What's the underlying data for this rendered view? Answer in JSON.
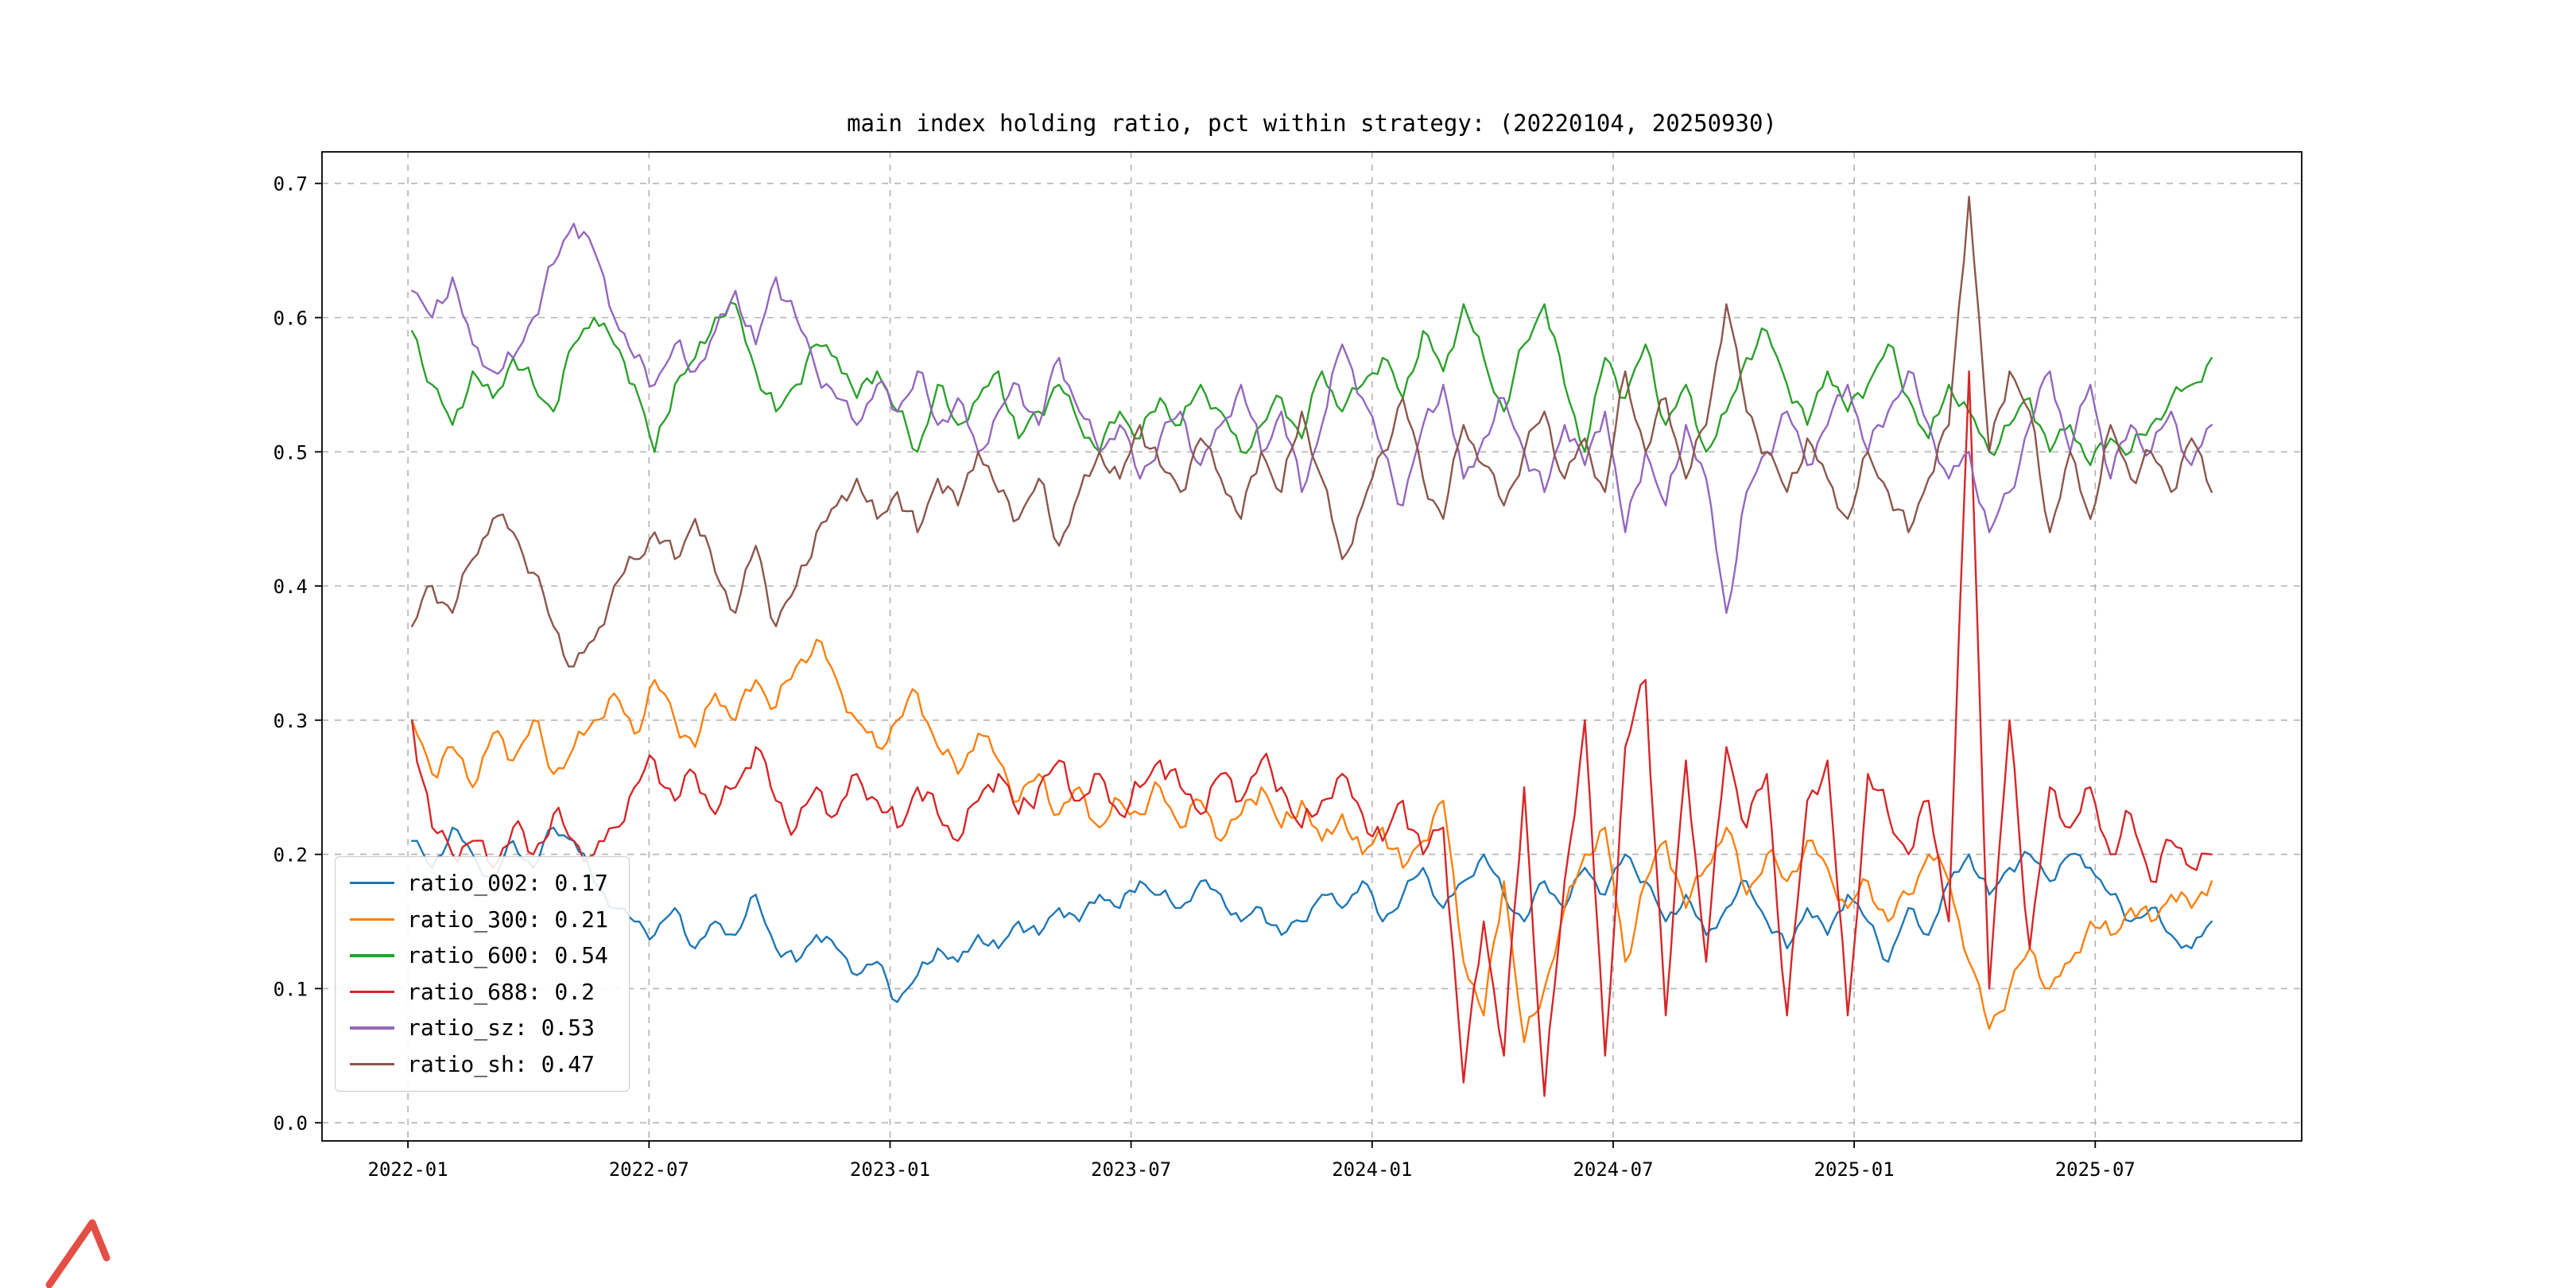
{
  "figure": {
    "title": "main index holding ratio, pct within strategy: (20220104, 20250930)"
  },
  "chart_data": {
    "type": "line",
    "title": "main index holding ratio, pct within strategy: (20220104, 20250930)",
    "xlabel": "",
    "ylabel": "",
    "grid": true,
    "legend_position": "lower-left",
    "x_tick_labels": [
      "2022-01",
      "2022-07",
      "2023-01",
      "2023-07",
      "2024-01",
      "2024-07",
      "2025-01",
      "2025-07"
    ],
    "x_tick_months": [
      0,
      6,
      12,
      18,
      24,
      30,
      36,
      42
    ],
    "x_axis_months_range": [
      -2.14,
      47.14
    ],
    "data_month_range": [
      0.1,
      44.9
    ],
    "y_ticks": [
      0.0,
      0.1,
      0.2,
      0.3,
      0.4,
      0.5,
      0.6,
      0.7
    ],
    "y_tick_labels": [
      "0.0",
      "0.1",
      "0.2",
      "0.3",
      "0.4",
      "0.5",
      "0.6",
      "0.7"
    ],
    "ylim": [
      -0.0135,
      0.7235
    ],
    "grid_color": "#b3b3b3",
    "series": [
      {
        "name": "ratio_002",
        "legend_label": "ratio_002: 0.17",
        "color": "#1f77b4",
        "values": [
          0.21,
          0.19,
          0.22,
          0.2,
          0.18,
          0.21,
          0.19,
          0.22,
          0.21,
          0.18,
          0.16,
          0.15,
          0.14,
          0.16,
          0.13,
          0.15,
          0.14,
          0.17,
          0.13,
          0.12,
          0.14,
          0.13,
          0.11,
          0.12,
          0.09,
          0.11,
          0.13,
          0.12,
          0.14,
          0.13,
          0.15,
          0.14,
          0.16,
          0.15,
          0.17,
          0.16,
          0.18,
          0.17,
          0.16,
          0.18,
          0.17,
          0.15,
          0.16,
          0.14,
          0.15,
          0.17,
          0.16,
          0.18,
          0.15,
          0.17,
          0.19,
          0.16,
          0.18,
          0.2,
          0.17,
          0.15,
          0.18,
          0.16,
          0.19,
          0.17,
          0.2,
          0.18,
          0.15,
          0.17,
          0.14,
          0.16,
          0.18,
          0.15,
          0.13,
          0.16,
          0.14,
          0.17,
          0.15,
          0.12,
          0.16,
          0.14,
          0.18,
          0.2,
          0.17,
          0.19,
          0.2,
          0.18,
          0.2,
          0.19,
          0.17,
          0.15,
          0.16,
          0.14,
          0.13,
          0.15
        ]
      },
      {
        "name": "ratio_300",
        "legend_label": "ratio_300: 0.21",
        "color": "#ff7f0e",
        "values": [
          0.3,
          0.26,
          0.28,
          0.25,
          0.29,
          0.27,
          0.3,
          0.26,
          0.28,
          0.3,
          0.32,
          0.29,
          0.33,
          0.3,
          0.28,
          0.32,
          0.3,
          0.33,
          0.31,
          0.34,
          0.36,
          0.33,
          0.3,
          0.28,
          0.3,
          0.32,
          0.28,
          0.26,
          0.29,
          0.27,
          0.24,
          0.26,
          0.23,
          0.25,
          0.22,
          0.24,
          0.23,
          0.25,
          0.22,
          0.24,
          0.21,
          0.23,
          0.25,
          0.22,
          0.24,
          0.21,
          0.23,
          0.2,
          0.22,
          0.19,
          0.21,
          0.24,
          0.12,
          0.08,
          0.18,
          0.06,
          0.1,
          0.16,
          0.2,
          0.22,
          0.12,
          0.18,
          0.21,
          0.16,
          0.19,
          0.22,
          0.17,
          0.2,
          0.18,
          0.21,
          0.19,
          0.16,
          0.18,
          0.15,
          0.17,
          0.2,
          0.18,
          0.12,
          0.07,
          0.1,
          0.13,
          0.1,
          0.12,
          0.15,
          0.14,
          0.16,
          0.15,
          0.17,
          0.16,
          0.18
        ]
      },
      {
        "name": "ratio_600",
        "legend_label": "ratio_600: 0.54",
        "color": "#2ca02c",
        "values": [
          0.59,
          0.55,
          0.52,
          0.56,
          0.54,
          0.57,
          0.55,
          0.53,
          0.58,
          0.6,
          0.58,
          0.55,
          0.5,
          0.55,
          0.57,
          0.6,
          0.61,
          0.56,
          0.53,
          0.55,
          0.58,
          0.57,
          0.54,
          0.56,
          0.53,
          0.5,
          0.55,
          0.52,
          0.54,
          0.56,
          0.51,
          0.53,
          0.55,
          0.52,
          0.5,
          0.53,
          0.51,
          0.54,
          0.52,
          0.55,
          0.53,
          0.5,
          0.52,
          0.54,
          0.51,
          0.56,
          0.53,
          0.55,
          0.57,
          0.54,
          0.59,
          0.56,
          0.61,
          0.57,
          0.53,
          0.58,
          0.61,
          0.55,
          0.5,
          0.57,
          0.54,
          0.58,
          0.52,
          0.55,
          0.5,
          0.53,
          0.57,
          0.59,
          0.55,
          0.52,
          0.56,
          0.53,
          0.55,
          0.58,
          0.54,
          0.51,
          0.55,
          0.53,
          0.5,
          0.52,
          0.54,
          0.5,
          0.52,
          0.49,
          0.51,
          0.5,
          0.52,
          0.54,
          0.55,
          0.57
        ]
      },
      {
        "name": "ratio_688",
        "legend_label": "ratio_688: 0.2",
        "color": "#d62728",
        "values": [
          0.3,
          0.22,
          0.2,
          0.21,
          0.19,
          0.22,
          0.2,
          0.23,
          0.21,
          0.2,
          0.22,
          0.25,
          0.27,
          0.24,
          0.26,
          0.23,
          0.25,
          0.28,
          0.24,
          0.22,
          0.25,
          0.23,
          0.26,
          0.24,
          0.22,
          0.25,
          0.23,
          0.21,
          0.24,
          0.26,
          0.23,
          0.25,
          0.27,
          0.24,
          0.26,
          0.23,
          0.25,
          0.27,
          0.25,
          0.23,
          0.26,
          0.24,
          0.27,
          0.25,
          0.22,
          0.24,
          0.26,
          0.23,
          0.21,
          0.24,
          0.2,
          0.22,
          0.03,
          0.15,
          0.05,
          0.25,
          0.02,
          0.18,
          0.3,
          0.05,
          0.28,
          0.33,
          0.08,
          0.27,
          0.12,
          0.28,
          0.22,
          0.26,
          0.08,
          0.24,
          0.27,
          0.08,
          0.26,
          0.23,
          0.2,
          0.24,
          0.15,
          0.56,
          0.1,
          0.3,
          0.13,
          0.25,
          0.22,
          0.25,
          0.2,
          0.23,
          0.18,
          0.21,
          0.19,
          0.2
        ]
      },
      {
        "name": "ratio_sz",
        "legend_label": "ratio_sz: 0.53",
        "color": "#9467bd",
        "values": [
          0.62,
          0.6,
          0.63,
          0.58,
          0.56,
          0.57,
          0.6,
          0.64,
          0.67,
          0.65,
          0.6,
          0.57,
          0.55,
          0.58,
          0.56,
          0.59,
          0.62,
          0.58,
          0.63,
          0.6,
          0.56,
          0.54,
          0.52,
          0.55,
          0.53,
          0.56,
          0.52,
          0.54,
          0.5,
          0.53,
          0.55,
          0.52,
          0.57,
          0.53,
          0.5,
          0.52,
          0.48,
          0.51,
          0.53,
          0.49,
          0.52,
          0.55,
          0.5,
          0.53,
          0.47,
          0.52,
          0.58,
          0.54,
          0.5,
          0.46,
          0.52,
          0.55,
          0.48,
          0.51,
          0.54,
          0.5,
          0.47,
          0.52,
          0.49,
          0.53,
          0.44,
          0.5,
          0.46,
          0.52,
          0.48,
          0.38,
          0.47,
          0.5,
          0.53,
          0.49,
          0.52,
          0.55,
          0.5,
          0.53,
          0.56,
          0.52,
          0.48,
          0.5,
          0.44,
          0.47,
          0.52,
          0.56,
          0.5,
          0.55,
          0.48,
          0.52,
          0.5,
          0.53,
          0.49,
          0.52
        ]
      },
      {
        "name": "ratio_sh",
        "legend_label": "ratio_sh: 0.47",
        "color": "#8c564b",
        "values": [
          0.37,
          0.4,
          0.38,
          0.42,
          0.45,
          0.44,
          0.41,
          0.37,
          0.34,
          0.36,
          0.4,
          0.42,
          0.44,
          0.42,
          0.45,
          0.41,
          0.38,
          0.43,
          0.37,
          0.4,
          0.44,
          0.46,
          0.48,
          0.45,
          0.47,
          0.44,
          0.48,
          0.46,
          0.5,
          0.47,
          0.45,
          0.48,
          0.43,
          0.47,
          0.5,
          0.48,
          0.52,
          0.49,
          0.47,
          0.51,
          0.48,
          0.45,
          0.5,
          0.47,
          0.53,
          0.48,
          0.42,
          0.46,
          0.5,
          0.54,
          0.48,
          0.45,
          0.52,
          0.49,
          0.46,
          0.5,
          0.53,
          0.48,
          0.51,
          0.47,
          0.56,
          0.5,
          0.54,
          0.48,
          0.52,
          0.61,
          0.53,
          0.5,
          0.47,
          0.51,
          0.48,
          0.45,
          0.5,
          0.47,
          0.44,
          0.48,
          0.52,
          0.69,
          0.5,
          0.56,
          0.53,
          0.44,
          0.5,
          0.45,
          0.52,
          0.48,
          0.5,
          0.47,
          0.51,
          0.47
        ]
      }
    ]
  }
}
